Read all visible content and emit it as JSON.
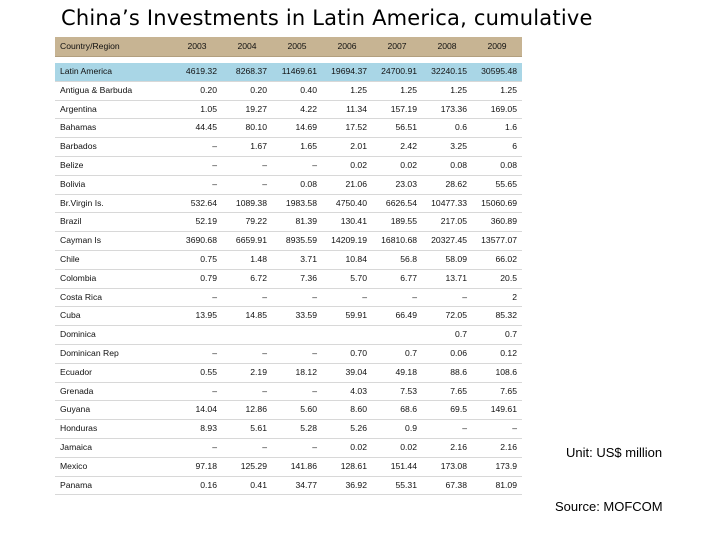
{
  "title": "China’s Investments in Latin America, cumulative",
  "table": {
    "headers": [
      "Country/Region",
      "2003",
      "2004",
      "2005",
      "2006",
      "2007",
      "2008",
      "2009"
    ],
    "rows": [
      [
        "Latin America",
        "4619.32",
        "8268.37",
        "11469.61",
        "19694.37",
        "24700.91",
        "32240.15",
        "30595.48"
      ],
      [
        "Antigua & Barbuda",
        "0.20",
        "0.20",
        "0.40",
        "1.25",
        "1.25",
        "1.25",
        "1.25"
      ],
      [
        "Argentina",
        "1.05",
        "19.27",
        "4.22",
        "11.34",
        "157.19",
        "173.36",
        "169.05"
      ],
      [
        "Bahamas",
        "44.45",
        "80.10",
        "14.69",
        "17.52",
        "56.51",
        "0.6",
        "1.6"
      ],
      [
        "Barbados",
        "–",
        "1.67",
        "1.65",
        "2.01",
        "2.42",
        "3.25",
        "6"
      ],
      [
        "Belize",
        "–",
        "–",
        "–",
        "0.02",
        "0.02",
        "0.08",
        "0.08"
      ],
      [
        "Bolivia",
        "–",
        "–",
        "0.08",
        "21.06",
        "23.03",
        "28.62",
        "55.65"
      ],
      [
        "Br.Virgin Is.",
        "532.64",
        "1089.38",
        "1983.58",
        "4750.40",
        "6626.54",
        "10477.33",
        "15060.69"
      ],
      [
        "Brazil",
        "52.19",
        "79.22",
        "81.39",
        "130.41",
        "189.55",
        "217.05",
        "360.89"
      ],
      [
        "Cayman Is",
        "3690.68",
        "6659.91",
        "8935.59",
        "14209.19",
        "16810.68",
        "20327.45",
        "13577.07"
      ],
      [
        "Chile",
        "0.75",
        "1.48",
        "3.71",
        "10.84",
        "56.8",
        "58.09",
        "66.02"
      ],
      [
        "Colombia",
        "0.79",
        "6.72",
        "7.36",
        "5.70",
        "6.77",
        "13.71",
        "20.5"
      ],
      [
        "Costa Rica",
        "–",
        "–",
        "–",
        "–",
        "–",
        "–",
        "2"
      ],
      [
        "Cuba",
        "13.95",
        "14.85",
        "33.59",
        "59.91",
        "66.49",
        "72.05",
        "85.32"
      ],
      [
        "Dominica",
        "",
        "",
        "",
        "",
        "",
        "0.7",
        "0.7"
      ],
      [
        "Dominican Rep",
        "–",
        "–",
        "–",
        "0.70",
        "0.7",
        "0.06",
        "0.12"
      ],
      [
        "Ecuador",
        "0.55",
        "2.19",
        "18.12",
        "39.04",
        "49.18",
        "88.6",
        "108.6"
      ],
      [
        "Grenada",
        "–",
        "–",
        "–",
        "4.03",
        "7.53",
        "7.65",
        "7.65"
      ],
      [
        "Guyana",
        "14.04",
        "12.86",
        "5.60",
        "8.60",
        "68.6",
        "69.5",
        "149.61"
      ],
      [
        "Honduras",
        "8.93",
        "5.61",
        "5.28",
        "5.26",
        "0.9",
        "–",
        "–"
      ],
      [
        "Jamaica",
        "–",
        "–",
        "–",
        "0.02",
        "0.02",
        "2.16",
        "2.16"
      ],
      [
        "Mexico",
        "97.18",
        "125.29",
        "141.86",
        "128.61",
        "151.44",
        "173.08",
        "173.9"
      ],
      [
        "Panama",
        "0.16",
        "0.41",
        "34.77",
        "36.92",
        "55.31",
        "67.38",
        "81.09"
      ]
    ]
  },
  "unit_note": "Unit: US$ million",
  "source_note": "Source: MOFCOM",
  "colors": {
    "header_bg": "#c7b493",
    "highlight_row_bg": "#a9d6e6"
  }
}
